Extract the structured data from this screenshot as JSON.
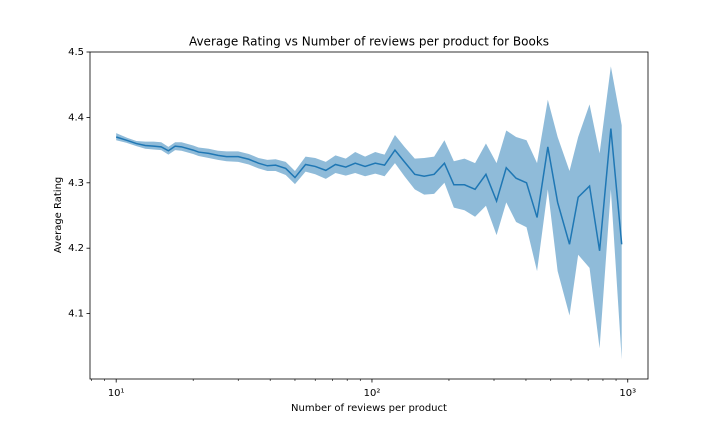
{
  "chart_data": {
    "type": "line",
    "title": "Average Rating vs Number of reviews per product for Books",
    "xlabel": "Number of reviews per product",
    "ylabel": "Average Rating",
    "xscale": "log",
    "color": "#1f77b4",
    "band_color": "#1f77b4",
    "x": [
      10,
      11,
      12,
      13,
      14,
      15,
      16,
      17,
      18,
      20,
      21,
      23,
      25,
      27,
      30,
      33,
      36,
      39,
      42,
      46,
      50,
      55,
      60,
      66,
      72,
      79,
      86,
      94,
      103,
      112,
      123,
      134,
      147,
      160,
      175,
      192,
      209,
      230,
      253,
      279,
      307,
      335,
      366,
      402,
      442,
      487,
      532,
      592,
      640,
      709,
      776,
      859,
      947
    ],
    "values": [
      4.37,
      4.365,
      4.36,
      4.357,
      4.356,
      4.355,
      4.349,
      4.356,
      4.355,
      4.35,
      4.347,
      4.345,
      4.342,
      4.34,
      4.34,
      4.336,
      4.33,
      4.326,
      4.327,
      4.322,
      4.308,
      4.328,
      4.325,
      4.319,
      4.328,
      4.324,
      4.33,
      4.325,
      4.33,
      4.327,
      4.35,
      4.332,
      4.313,
      4.31,
      4.313,
      4.33,
      4.297,
      4.297,
      4.29,
      4.313,
      4.272,
      4.323,
      4.307,
      4.3,
      4.247,
      4.355,
      4.27,
      4.206,
      4.278,
      4.295,
      4.196,
      4.383,
      4.206
    ],
    "upper": [
      4.376,
      4.369,
      4.364,
      4.363,
      4.363,
      4.362,
      4.355,
      4.362,
      4.362,
      4.357,
      4.354,
      4.352,
      4.349,
      4.348,
      4.348,
      4.344,
      4.338,
      4.335,
      4.336,
      4.332,
      4.318,
      4.34,
      4.338,
      4.332,
      4.342,
      4.337,
      4.347,
      4.34,
      4.347,
      4.343,
      4.373,
      4.355,
      4.337,
      4.338,
      4.34,
      4.365,
      4.333,
      4.337,
      4.33,
      4.36,
      4.33,
      4.38,
      4.37,
      4.365,
      4.33,
      4.427,
      4.37,
      4.318,
      4.37,
      4.42,
      4.345,
      4.478,
      4.388
    ],
    "lower": [
      4.365,
      4.361,
      4.356,
      4.352,
      4.351,
      4.35,
      4.343,
      4.35,
      4.349,
      4.344,
      4.341,
      4.338,
      4.335,
      4.333,
      4.332,
      4.328,
      4.322,
      4.318,
      4.318,
      4.312,
      4.298,
      4.317,
      4.313,
      4.306,
      4.315,
      4.311,
      4.315,
      4.31,
      4.314,
      4.31,
      4.33,
      4.31,
      4.29,
      4.282,
      4.283,
      4.3,
      4.262,
      4.258,
      4.248,
      4.265,
      4.22,
      4.27,
      4.24,
      4.232,
      4.165,
      4.29,
      4.165,
      4.097,
      4.19,
      4.17,
      4.047,
      4.29,
      4.03
    ],
    "xlim": [
      7.9,
      1200
    ],
    "ylim": [
      4.0,
      4.5
    ],
    "xticks": [
      {
        "value": 10,
        "label": "10¹"
      },
      {
        "value": 100,
        "label": "10²"
      },
      {
        "value": 1000,
        "label": "10³"
      }
    ],
    "xminorticks": [
      8,
      9,
      20,
      30,
      40,
      50,
      60,
      70,
      80,
      90,
      200,
      300,
      400,
      500,
      600,
      700,
      800,
      900
    ],
    "yticks": [
      4.1,
      4.2,
      4.3,
      4.4,
      4.5
    ]
  }
}
